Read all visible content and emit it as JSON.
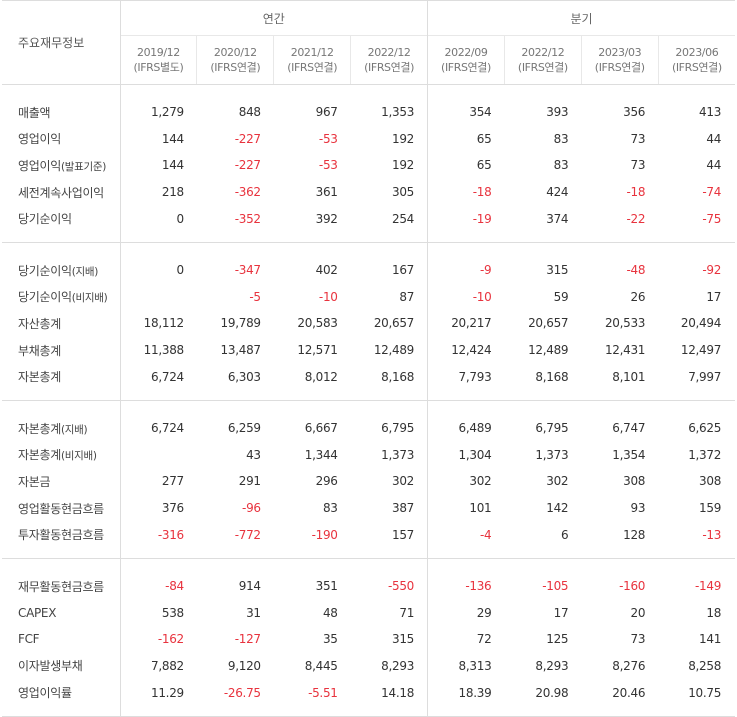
{
  "header": {
    "title": "주요재무정보",
    "annual_label": "연간",
    "quarter_label": "분기",
    "periods": [
      {
        "date": "2019/12",
        "basis": "(IFRS별도)"
      },
      {
        "date": "2020/12",
        "basis": "(IFRS연결)"
      },
      {
        "date": "2021/12",
        "basis": "(IFRS연결)"
      },
      {
        "date": "2022/12",
        "basis": "(IFRS연결)"
      },
      {
        "date": "2022/09",
        "basis": "(IFRS연결)"
      },
      {
        "date": "2022/12",
        "basis": "(IFRS연결)"
      },
      {
        "date": "2023/03",
        "basis": "(IFRS연결)"
      },
      {
        "date": "2023/06",
        "basis": "(IFRS연결)"
      }
    ]
  },
  "rows": [
    {
      "label": "매출액",
      "suffix": "",
      "values": [
        "1,279",
        "848",
        "967",
        "1,353",
        "354",
        "393",
        "356",
        "413"
      ]
    },
    {
      "label": "영업이익",
      "suffix": "",
      "values": [
        "144",
        "-227",
        "-53",
        "192",
        "65",
        "83",
        "73",
        "44"
      ]
    },
    {
      "label": "영업이익",
      "suffix": "(발표기준)",
      "values": [
        "144",
        "-227",
        "-53",
        "192",
        "65",
        "83",
        "73",
        "44"
      ]
    },
    {
      "label": "세전계속사업이익",
      "suffix": "",
      "values": [
        "218",
        "-362",
        "361",
        "305",
        "-18",
        "424",
        "-18",
        "-74"
      ]
    },
    {
      "label": "당기순이익",
      "suffix": "",
      "values": [
        "0",
        "-352",
        "392",
        "254",
        "-19",
        "374",
        "-22",
        "-75"
      ]
    },
    {
      "label": "당기순이익",
      "suffix": "(지배)",
      "values": [
        "0",
        "-347",
        "402",
        "167",
        "-9",
        "315",
        "-48",
        "-92"
      ]
    },
    {
      "label": "당기순이익",
      "suffix": "(비지배)",
      "values": [
        "",
        "-5",
        "-10",
        "87",
        "-10",
        "59",
        "26",
        "17"
      ]
    },
    {
      "label": "자산총계",
      "suffix": "",
      "values": [
        "18,112",
        "19,789",
        "20,583",
        "20,657",
        "20,217",
        "20,657",
        "20,533",
        "20,494"
      ]
    },
    {
      "label": "부채총계",
      "suffix": "",
      "values": [
        "11,388",
        "13,487",
        "12,571",
        "12,489",
        "12,424",
        "12,489",
        "12,431",
        "12,497"
      ]
    },
    {
      "label": "자본총계",
      "suffix": "",
      "values": [
        "6,724",
        "6,303",
        "8,012",
        "8,168",
        "7,793",
        "8,168",
        "8,101",
        "7,997"
      ]
    },
    {
      "label": "자본총계",
      "suffix": "(지배)",
      "values": [
        "6,724",
        "6,259",
        "6,667",
        "6,795",
        "6,489",
        "6,795",
        "6,747",
        "6,625"
      ]
    },
    {
      "label": "자본총계",
      "suffix": "(비지배)",
      "values": [
        "",
        "43",
        "1,344",
        "1,373",
        "1,304",
        "1,373",
        "1,354",
        "1,372"
      ]
    },
    {
      "label": "자본금",
      "suffix": "",
      "values": [
        "277",
        "291",
        "296",
        "302",
        "302",
        "302",
        "308",
        "308"
      ]
    },
    {
      "label": "영업활동현금흐름",
      "suffix": "",
      "values": [
        "376",
        "-96",
        "83",
        "387",
        "101",
        "142",
        "93",
        "159"
      ]
    },
    {
      "label": "투자활동현금흐름",
      "suffix": "",
      "values": [
        "-316",
        "-772",
        "-190",
        "157",
        "-4",
        "6",
        "128",
        "-13"
      ]
    },
    {
      "label": "재무활동현금흐름",
      "suffix": "",
      "values": [
        "-84",
        "914",
        "351",
        "-550",
        "-136",
        "-105",
        "-160",
        "-149"
      ]
    },
    {
      "label": "CAPEX",
      "suffix": "",
      "values": [
        "538",
        "31",
        "48",
        "71",
        "29",
        "17",
        "20",
        "18"
      ]
    },
    {
      "label": "FCF",
      "suffix": "",
      "values": [
        "-162",
        "-127",
        "35",
        "315",
        "72",
        "125",
        "73",
        "141"
      ]
    },
    {
      "label": "이자발생부채",
      "suffix": "",
      "values": [
        "7,882",
        "9,120",
        "8,445",
        "8,293",
        "8,313",
        "8,293",
        "8,276",
        "8,258"
      ]
    },
    {
      "label": "영업이익률",
      "suffix": "",
      "values": [
        "11.29",
        "-26.75",
        "-5.51",
        "14.18",
        "18.39",
        "20.98",
        "20.46",
        "10.75"
      ]
    }
  ],
  "colors": {
    "negative": "#e8333e",
    "border": "#dddddd",
    "text": "#333333"
  }
}
